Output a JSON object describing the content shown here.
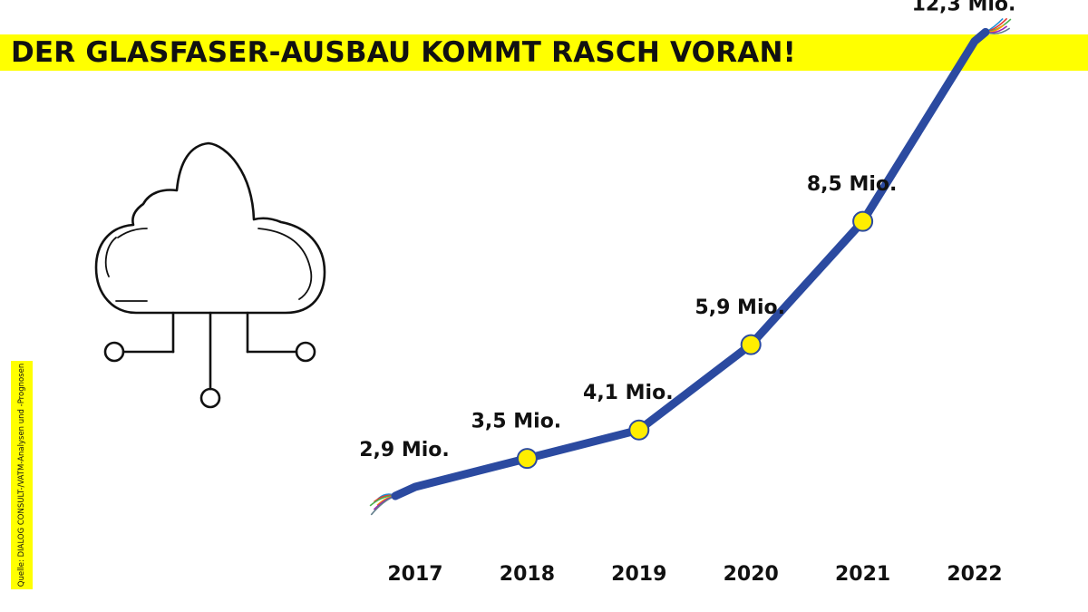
{
  "header": {
    "title": "DER GLASFASER-AUSBAU KOMMT RASCH VORAN!"
  },
  "source": "Quelle: DIALOG CONSULT-/VATM-Analysen und -Prognosen",
  "icon": "cloud-network-icon",
  "colors": {
    "accent": "#ffff00",
    "line": "#2b4aa0",
    "marker": "#ffee00"
  },
  "chart_data": {
    "type": "line",
    "categories": [
      "2017",
      "2018",
      "2019",
      "2020",
      "2021",
      "2022"
    ],
    "values": [
      2.9,
      3.5,
      4.1,
      5.9,
      8.5,
      12.3
    ],
    "data_labels": [
      "2,9 Mio.",
      "3,5 Mio.",
      "4,1 Mio.",
      "5,9 Mio.",
      "8,5 Mio.",
      "12,3 Mio."
    ],
    "unit": "Mio.",
    "grid": false,
    "legend": "none"
  }
}
